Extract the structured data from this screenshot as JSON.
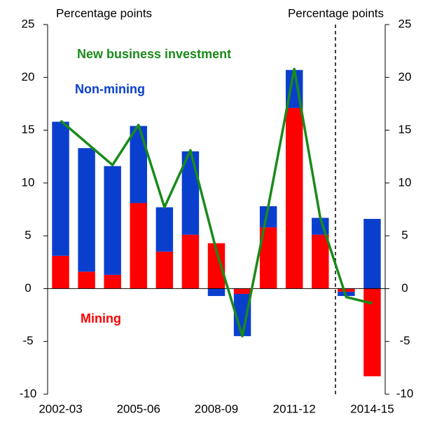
{
  "chart_data": {
    "type": "stacked-bar-line",
    "y_label": "Percentage points",
    "y2_label": "Percentage points",
    "categories": [
      "2002-03",
      null,
      null,
      "2005-06",
      null,
      null,
      "2008-09",
      null,
      null,
      "2011-12",
      null,
      null,
      "2014-15"
    ],
    "series": [
      {
        "name": "Mining",
        "color": "#ff0000",
        "kind": "bar",
        "values": [
          3.1,
          1.6,
          1.3,
          8.1,
          3.5,
          5.1,
          4.3,
          -0.5,
          5.8,
          17.1,
          5.1,
          -0.3,
          -8.3
        ]
      },
      {
        "name": "Non-mining",
        "color": "#0a3fce",
        "kind": "bar",
        "values": [
          12.7,
          11.7,
          10.3,
          7.3,
          4.2,
          7.9,
          -0.7,
          -4.0,
          2.0,
          3.6,
          1.6,
          -0.4,
          6.6
        ]
      },
      {
        "name": "New business investment",
        "color": "#1a8a1a",
        "kind": "line",
        "values": [
          15.9,
          13.8,
          11.7,
          15.5,
          7.7,
          13.1,
          3.6,
          -4.5,
          7.8,
          20.8,
          6.7,
          -0.8,
          -1.4
        ]
      }
    ],
    "ylim": [
      -10,
      25
    ],
    "yticks": [
      -10,
      -5,
      0,
      5,
      10,
      15,
      20,
      25
    ],
    "y2lim": [
      -10,
      25
    ],
    "y2ticks": [
      -10,
      -5,
      0,
      5,
      10,
      15,
      20,
      25
    ]
  }
}
